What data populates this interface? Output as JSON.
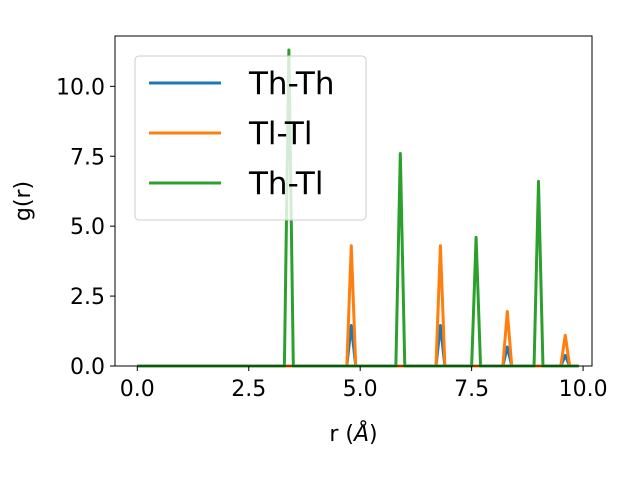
{
  "chart_data": {
    "type": "line",
    "xlabel_prefix": "r (",
    "xlabel_unit": "Å",
    "xlabel_suffix": ")",
    "ylabel": "g(r)",
    "xlim": [
      -0.5,
      10.2
    ],
    "ylim": [
      0,
      11.8
    ],
    "xticks": [
      0.0,
      2.5,
      5.0,
      7.5,
      10.0
    ],
    "xtick_labels": [
      "0.0",
      "2.5",
      "5.0",
      "7.5",
      "10.0"
    ],
    "yticks": [
      0.0,
      2.5,
      5.0,
      7.5,
      10.0
    ],
    "ytick_labels": [
      "0.0",
      "2.5",
      "5.0",
      "7.5",
      "10.0"
    ],
    "grid": false,
    "legend_position": "top-left",
    "series": [
      {
        "name": "Th-Th",
        "color": "#1f77b4",
        "x": [
          0.0,
          4.7,
          4.8,
          4.9,
          6.7,
          6.8,
          6.9,
          8.2,
          8.3,
          8.4,
          9.5,
          9.6,
          9.7,
          9.9
        ],
        "y": [
          0,
          0,
          1.45,
          0,
          0,
          1.45,
          0,
          0,
          0.68,
          0,
          0,
          0.38,
          0,
          0
        ]
      },
      {
        "name": "Tl-Tl",
        "color": "#ff7f0e",
        "x": [
          0.0,
          4.7,
          4.8,
          4.9,
          6.7,
          6.8,
          6.9,
          8.2,
          8.3,
          8.4,
          9.5,
          9.6,
          9.7,
          9.9
        ],
        "y": [
          0,
          0,
          4.3,
          0,
          0,
          4.3,
          0,
          0,
          1.95,
          0,
          0,
          1.1,
          0,
          0
        ]
      },
      {
        "name": "Th-Tl",
        "color": "#2ca02c",
        "x": [
          0.0,
          3.3,
          3.4,
          3.5,
          5.8,
          5.9,
          6.0,
          7.5,
          7.6,
          7.7,
          8.9,
          9.0,
          9.1,
          9.9
        ],
        "y": [
          0,
          0,
          11.3,
          0,
          0,
          7.6,
          0,
          0,
          4.6,
          0,
          0,
          6.6,
          0,
          0
        ]
      }
    ]
  }
}
